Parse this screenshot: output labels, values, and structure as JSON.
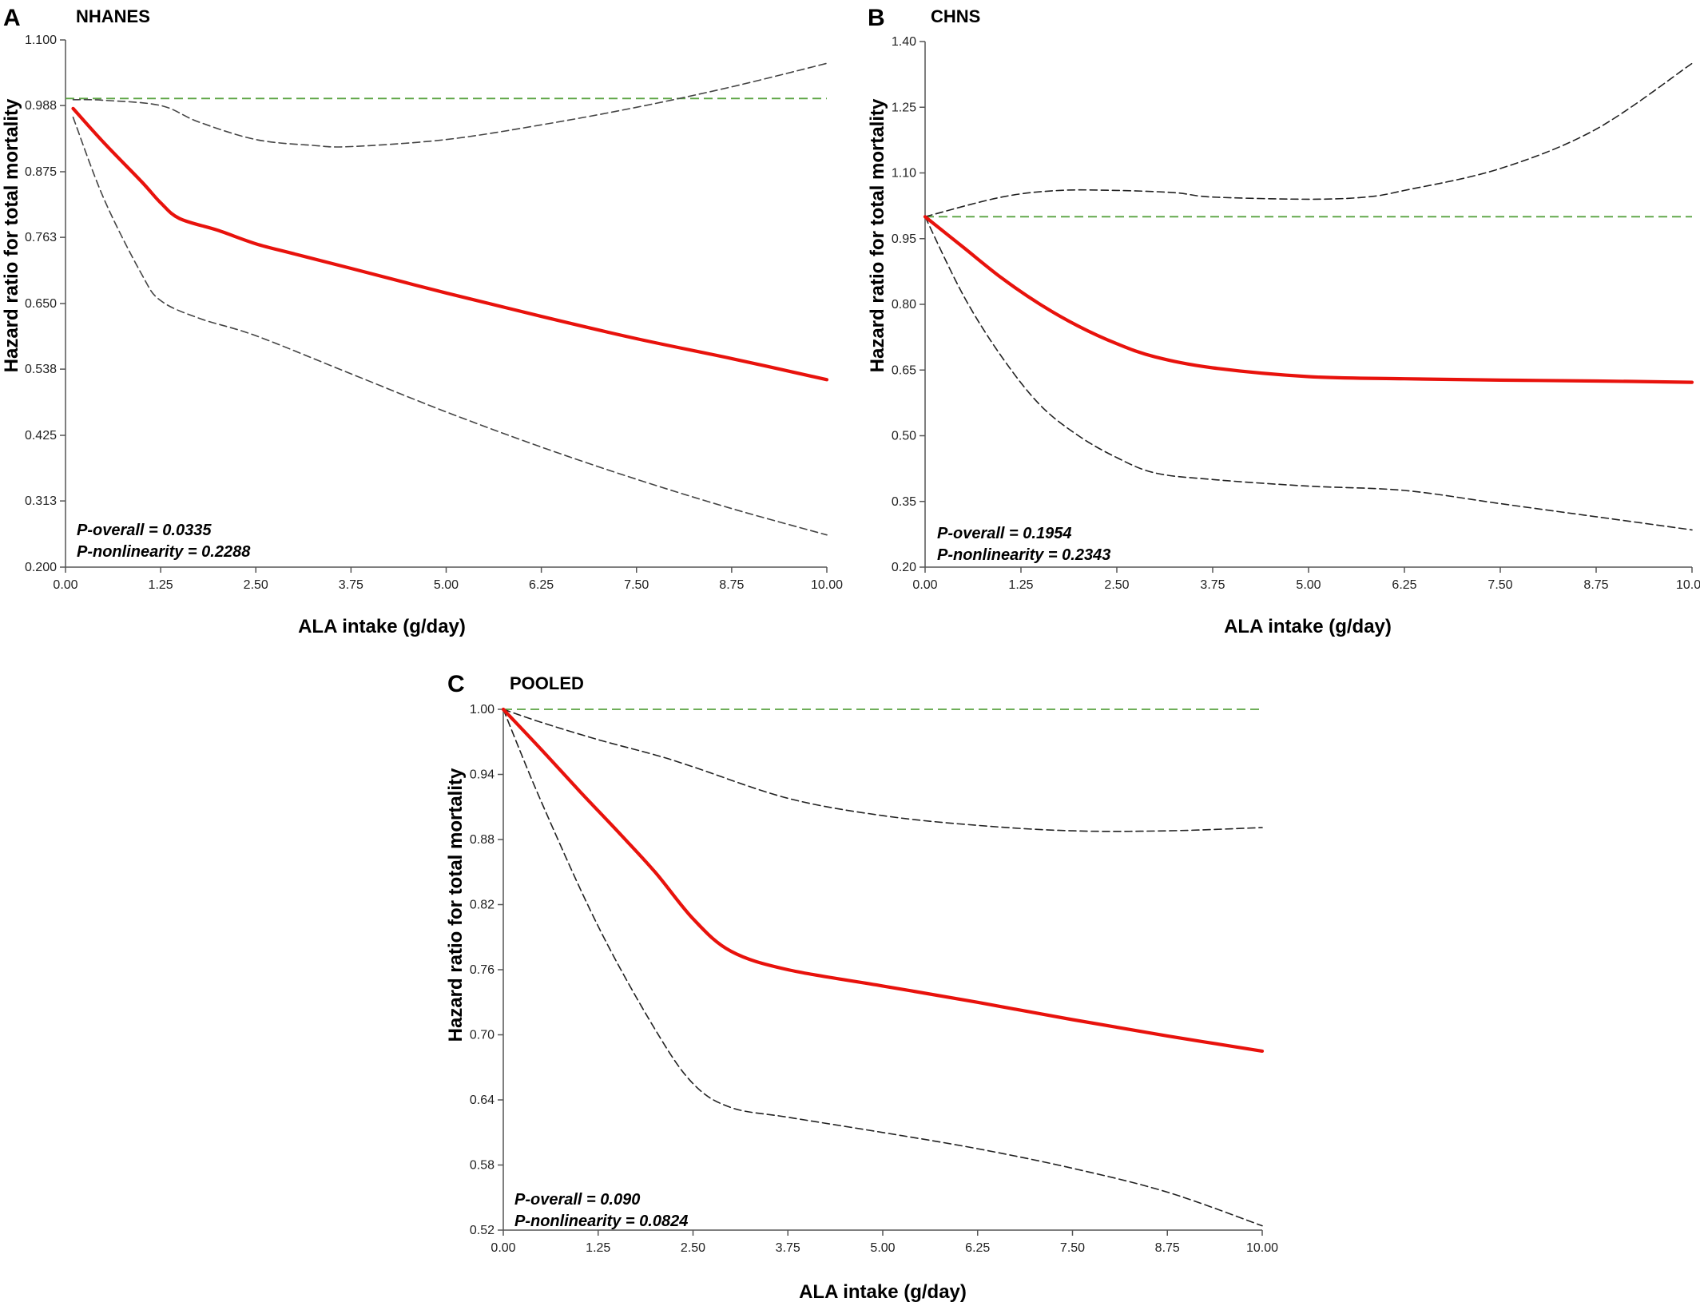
{
  "chart_data": [
    {
      "type": "line",
      "panel_label": "A",
      "title": "NHANES",
      "xlabel": "ALA intake (g/day)",
      "ylabel": "Hazard ratio for total mortality",
      "xlim": [
        0,
        10
      ],
      "ylim": [
        0.2,
        1.1
      ],
      "x_ticks": [
        "0.00",
        "1.25",
        "2.50",
        "3.75",
        "5.00",
        "6.25",
        "7.50",
        "8.75",
        "10.00"
      ],
      "y_ticks": [
        "0.200",
        "0.313",
        "0.425",
        "0.538",
        "0.650",
        "0.763",
        "0.875",
        "0.988",
        "1.100"
      ],
      "reference_line": 1.0,
      "annotations": [
        "P-overall = 0.0335",
        "P-nonlinearity = 0.2288"
      ],
      "series": [
        {
          "role": "estimate",
          "color": "#e8120c",
          "points": [
            [
              0.1,
              0.983
            ],
            [
              0.5,
              0.925
            ],
            [
              1.0,
              0.858
            ],
            [
              1.25,
              0.822
            ],
            [
              1.5,
              0.795
            ],
            [
              2.0,
              0.775
            ],
            [
              2.5,
              0.752
            ],
            [
              3.0,
              0.735
            ],
            [
              3.75,
              0.71
            ],
            [
              5.0,
              0.668
            ],
            [
              6.25,
              0.628
            ],
            [
              7.5,
              0.59
            ],
            [
              8.75,
              0.556
            ],
            [
              10.0,
              0.52
            ]
          ]
        },
        {
          "role": "upper-ci",
          "color": "#444444",
          "points": [
            [
              0.1,
              0.998
            ],
            [
              0.5,
              0.997
            ],
            [
              1.25,
              0.988
            ],
            [
              1.75,
              0.96
            ],
            [
              2.5,
              0.93
            ],
            [
              3.25,
              0.92
            ],
            [
              3.75,
              0.918
            ],
            [
              5.0,
              0.93
            ],
            [
              6.25,
              0.955
            ],
            [
              7.5,
              0.985
            ],
            [
              8.75,
              1.02
            ],
            [
              10.0,
              1.06
            ]
          ]
        },
        {
          "role": "lower-ci",
          "color": "#444444",
          "points": [
            [
              0.1,
              0.968
            ],
            [
              0.5,
              0.83
            ],
            [
              1.0,
              0.7
            ],
            [
              1.25,
              0.655
            ],
            [
              1.75,
              0.625
            ],
            [
              2.5,
              0.595
            ],
            [
              3.75,
              0.53
            ],
            [
              5.0,
              0.465
            ],
            [
              6.25,
              0.405
            ],
            [
              7.5,
              0.35
            ],
            [
              8.75,
              0.3
            ],
            [
              10.0,
              0.255
            ]
          ]
        }
      ]
    },
    {
      "type": "line",
      "panel_label": "B",
      "title": "CHNS",
      "xlabel": "ALA intake (g/day)",
      "ylabel": "Hazard ratio for total mortality",
      "xlim": [
        0,
        10
      ],
      "ylim": [
        0.2,
        1.4
      ],
      "x_ticks": [
        "0.00",
        "1.25",
        "2.50",
        "3.75",
        "5.00",
        "6.25",
        "7.50",
        "8.75",
        "10.00"
      ],
      "y_ticks": [
        "0.20",
        "0.35",
        "0.50",
        "0.65",
        "0.80",
        "0.95",
        "1.10",
        "1.25",
        "1.40"
      ],
      "reference_line": 1.0,
      "annotations": [
        "P-overall = 0.1954",
        "P-nonlinearity = 0.2343"
      ],
      "series": [
        {
          "role": "estimate",
          "color": "#e8120c",
          "points": [
            [
              0,
              1.0
            ],
            [
              0.5,
              0.93
            ],
            [
              1.0,
              0.86
            ],
            [
              1.5,
              0.8
            ],
            [
              2.0,
              0.75
            ],
            [
              2.5,
              0.71
            ],
            [
              3.0,
              0.68
            ],
            [
              3.75,
              0.655
            ],
            [
              5.0,
              0.635
            ],
            [
              6.25,
              0.63
            ],
            [
              7.5,
              0.627
            ],
            [
              8.75,
              0.625
            ],
            [
              10.0,
              0.622
            ]
          ]
        },
        {
          "role": "upper-ci",
          "color": "#222222",
          "points": [
            [
              0,
              1.0
            ],
            [
              1.0,
              1.045
            ],
            [
              1.75,
              1.06
            ],
            [
              2.5,
              1.06
            ],
            [
              3.25,
              1.055
            ],
            [
              3.75,
              1.045
            ],
            [
              5.0,
              1.04
            ],
            [
              5.75,
              1.045
            ],
            [
              6.25,
              1.06
            ],
            [
              7.5,
              1.11
            ],
            [
              8.75,
              1.2
            ],
            [
              10.0,
              1.35
            ]
          ]
        },
        {
          "role": "lower-ci",
          "color": "#222222",
          "points": [
            [
              0,
              1.0
            ],
            [
              0.5,
              0.82
            ],
            [
              1.0,
              0.68
            ],
            [
              1.5,
              0.57
            ],
            [
              2.0,
              0.5
            ],
            [
              2.5,
              0.45
            ],
            [
              3.0,
              0.415
            ],
            [
              3.75,
              0.4
            ],
            [
              5.0,
              0.385
            ],
            [
              6.25,
              0.375
            ],
            [
              7.5,
              0.345
            ],
            [
              8.75,
              0.315
            ],
            [
              10.0,
              0.285
            ]
          ]
        }
      ]
    },
    {
      "type": "line",
      "panel_label": "C",
      "title": "POOLED",
      "xlabel": "ALA intake (g/day)",
      "ylabel": "Hazard ratio for total mortality",
      "xlim": [
        0,
        10
      ],
      "ylim": [
        0.52,
        1.0
      ],
      "x_ticks": [
        "0.00",
        "1.25",
        "2.50",
        "3.75",
        "5.00",
        "6.25",
        "7.50",
        "8.75",
        "10.00"
      ],
      "y_ticks": [
        "0.52",
        "0.58",
        "0.64",
        "0.70",
        "0.76",
        "0.82",
        "0.88",
        "0.94",
        "1.00"
      ],
      "reference_line": 1.0,
      "annotations": [
        "P-overall = 0.090",
        "P-nonlinearity = 0.0824"
      ],
      "series": [
        {
          "role": "estimate",
          "color": "#e8120c",
          "points": [
            [
              0,
              1.0
            ],
            [
              0.5,
              0.963
            ],
            [
              1.0,
              0.925
            ],
            [
              1.5,
              0.888
            ],
            [
              2.0,
              0.85
            ],
            [
              2.5,
              0.807
            ],
            [
              3.0,
              0.777
            ],
            [
              3.75,
              0.76
            ],
            [
              5.0,
              0.745
            ],
            [
              6.25,
              0.73
            ],
            [
              7.5,
              0.714
            ],
            [
              8.75,
              0.699
            ],
            [
              10.0,
              0.685
            ]
          ]
        },
        {
          "role": "upper-ci",
          "color": "#222222",
          "points": [
            [
              0,
              1.0
            ],
            [
              0.5,
              0.988
            ],
            [
              1.25,
              0.972
            ],
            [
              2.0,
              0.958
            ],
            [
              2.5,
              0.947
            ],
            [
              3.75,
              0.918
            ],
            [
              5.0,
              0.902
            ],
            [
              6.25,
              0.893
            ],
            [
              7.5,
              0.888
            ],
            [
              8.75,
              0.888
            ],
            [
              10.0,
              0.891
            ]
          ]
        },
        {
          "role": "lower-ci",
          "color": "#222222",
          "points": [
            [
              0,
              1.0
            ],
            [
              0.5,
              0.915
            ],
            [
              1.25,
              0.8
            ],
            [
              2.0,
              0.705
            ],
            [
              2.5,
              0.655
            ],
            [
              3.0,
              0.633
            ],
            [
              3.75,
              0.624
            ],
            [
              5.0,
              0.61
            ],
            [
              6.25,
              0.595
            ],
            [
              7.5,
              0.577
            ],
            [
              8.75,
              0.555
            ],
            [
              10.0,
              0.524
            ]
          ]
        }
      ]
    }
  ]
}
